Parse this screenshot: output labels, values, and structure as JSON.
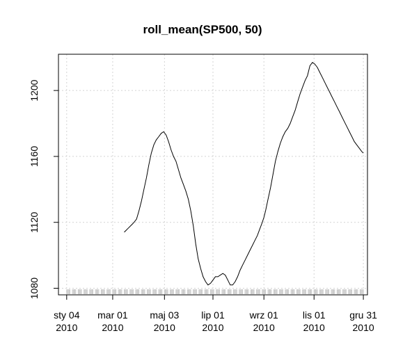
{
  "chart_data": {
    "type": "line",
    "title": "roll_mean(SP500, 50)",
    "xlabel": "",
    "ylabel": "",
    "ylim": [
      1076,
      1222
    ],
    "grid": true,
    "x_ticks": [
      {
        "month": "sty 04",
        "year": "2010",
        "day": 0
      },
      {
        "month": "mar 01",
        "year": "2010",
        "day": 56
      },
      {
        "month": "maj 03",
        "year": "2010",
        "day": 119
      },
      {
        "month": "lip 01",
        "year": "2010",
        "day": 178
      },
      {
        "month": "wrz 01",
        "year": "2010",
        "day": 240
      },
      {
        "month": "lis 01",
        "year": "2010",
        "day": 301
      },
      {
        "month": "gru 31",
        "year": "2010",
        "day": 361
      }
    ],
    "y_ticks": [
      1080,
      1120,
      1160,
      1200
    ],
    "x_range_days": [
      -10,
      366
    ],
    "series": [
      {
        "name": "roll_mean(SP500, 50)",
        "x_days": [
          70,
          72,
          74,
          76,
          78,
          80,
          82,
          85,
          88,
          91,
          94,
          97,
          100,
          103,
          106,
          109,
          112,
          115,
          118,
          121,
          124,
          127,
          130,
          133,
          136,
          139,
          142,
          145,
          148,
          151,
          154,
          157,
          160,
          163,
          166,
          169,
          172,
          175,
          178,
          181,
          184,
          187,
          190,
          193,
          196,
          199,
          202,
          205,
          208,
          211,
          214,
          217,
          220,
          223,
          226,
          229,
          232,
          235,
          238,
          240,
          242,
          245,
          248,
          251,
          254,
          257,
          260,
          263,
          266,
          269,
          272,
          275,
          278,
          281,
          284,
          287,
          290,
          293,
          296,
          299,
          302,
          305,
          308,
          311,
          314,
          317,
          320,
          323,
          326,
          329,
          332,
          335,
          338,
          341,
          344,
          347,
          350,
          353,
          356,
          359,
          361
        ],
        "values": [
          1114,
          1115,
          1116,
          1117,
          1118,
          1119,
          1120,
          1122,
          1127,
          1133,
          1140,
          1147,
          1155,
          1162,
          1167,
          1170,
          1172,
          1174,
          1175,
          1173,
          1169,
          1164,
          1160,
          1157,
          1152,
          1147,
          1143,
          1139,
          1134,
          1127,
          1118,
          1107,
          1098,
          1092,
          1087,
          1084,
          1082,
          1083,
          1085,
          1087,
          1087,
          1088,
          1089,
          1088,
          1085,
          1082,
          1082,
          1084,
          1087,
          1091,
          1094,
          1097,
          1100,
          1103,
          1106,
          1109,
          1112,
          1116,
          1120,
          1123,
          1127,
          1134,
          1141,
          1149,
          1157,
          1163,
          1168,
          1172,
          1175,
          1177,
          1180,
          1184,
          1188,
          1193,
          1198,
          1202,
          1206,
          1209,
          1215,
          1217,
          1216,
          1214,
          1211,
          1208,
          1205,
          1202,
          1199,
          1196,
          1193,
          1190,
          1187,
          1184,
          1181,
          1178,
          1175,
          1172,
          1169,
          1167,
          1165,
          1163,
          1162
        ]
      }
    ]
  }
}
